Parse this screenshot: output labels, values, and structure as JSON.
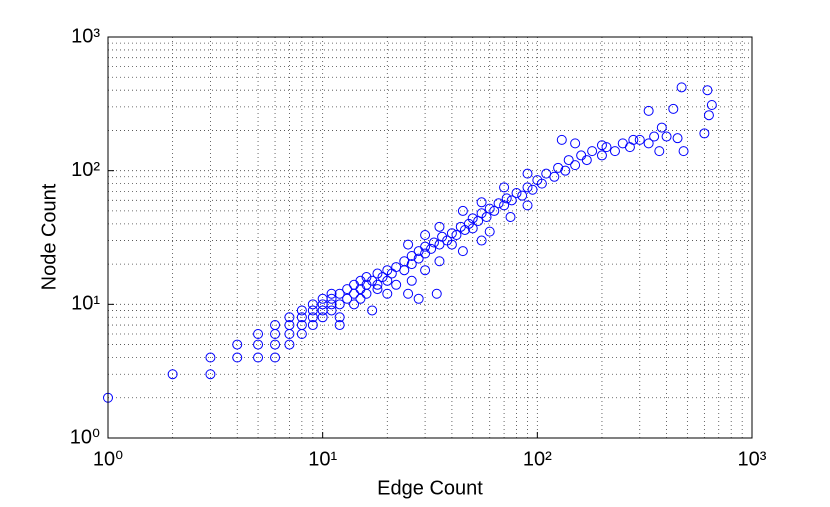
{
  "chart_data": {
    "type": "scatter",
    "xlabel": "Edge Count",
    "ylabel": "Node Count",
    "xscale": "log",
    "yscale": "log",
    "grid": true,
    "minor_grid": true,
    "xlim": [
      1,
      1000
    ],
    "ylim": [
      1,
      1000
    ],
    "xticks": [
      {
        "value": 1,
        "label": "10⁰"
      },
      {
        "value": 10,
        "label": "10¹"
      },
      {
        "value": 100,
        "label": "10²"
      },
      {
        "value": 1000,
        "label": "10³"
      }
    ],
    "yticks": [
      {
        "value": 1,
        "label": "10⁰"
      },
      {
        "value": 10,
        "label": "10¹"
      },
      {
        "value": 100,
        "label": "10²"
      },
      {
        "value": 1000,
        "label": "10³"
      }
    ],
    "series": [
      {
        "color": "#0000ff",
        "x": [
          1,
          2,
          3,
          3,
          4,
          4,
          5,
          5,
          5,
          6,
          6,
          6,
          6,
          7,
          7,
          7,
          7,
          8,
          8,
          8,
          8,
          9,
          9,
          9,
          9,
          10,
          10,
          10,
          10,
          11,
          11,
          11,
          11,
          12,
          12,
          12,
          13,
          13,
          14,
          14,
          14,
          15,
          15,
          16,
          16,
          16,
          17,
          18,
          18,
          19,
          20,
          20,
          21,
          22,
          24,
          24,
          26,
          26,
          28,
          28,
          30,
          30,
          32,
          33,
          35,
          36,
          38,
          40,
          40,
          42,
          44,
          46,
          48,
          50,
          50,
          53,
          55,
          58,
          60,
          63,
          66,
          70,
          72,
          76,
          80,
          85,
          90,
          95,
          100,
          105,
          110,
          120,
          125,
          135,
          140,
          150,
          160,
          170,
          180,
          200,
          210,
          230,
          250,
          270,
          300,
          330,
          350,
          370,
          400,
          450,
          480,
          430,
          470,
          600,
          620,
          630,
          650,
          280,
          330,
          380,
          15,
          25,
          17,
          18,
          22,
          26,
          30,
          35,
          45,
          60,
          75,
          90,
          34,
          28,
          55,
          25,
          30,
          35,
          45,
          55,
          70,
          90,
          130,
          150,
          200,
          12,
          20
        ],
        "y": [
          2,
          3,
          3,
          4,
          4,
          5,
          4,
          5,
          6,
          4,
          5,
          6,
          7,
          5,
          6,
          7,
          8,
          6,
          7,
          8,
          9,
          7,
          8,
          9,
          10,
          8,
          9,
          10,
          11,
          9,
          10,
          11,
          12,
          7,
          10,
          12,
          11,
          13,
          10,
          12,
          14,
          13,
          15,
          12,
          14,
          16,
          15,
          14,
          17,
          16,
          15,
          18,
          17,
          19,
          18,
          21,
          20,
          23,
          22,
          25,
          24,
          27,
          26,
          29,
          28,
          32,
          30,
          34,
          28,
          33,
          38,
          36,
          40,
          37,
          44,
          42,
          48,
          45,
          52,
          50,
          57,
          55,
          62,
          60,
          68,
          65,
          75,
          72,
          85,
          80,
          95,
          90,
          105,
          100,
          120,
          110,
          130,
          120,
          140,
          130,
          150,
          140,
          160,
          150,
          170,
          160,
          180,
          140,
          180,
          175,
          140,
          290,
          420,
          190,
          400,
          260,
          310,
          170,
          280,
          210,
          11,
          12,
          9,
          13,
          14,
          15,
          18,
          21,
          25,
          35,
          45,
          55,
          12,
          11,
          30,
          28,
          33,
          38,
          50,
          58,
          75,
          95,
          170,
          160,
          155,
          8,
          12
        ]
      }
    ]
  }
}
